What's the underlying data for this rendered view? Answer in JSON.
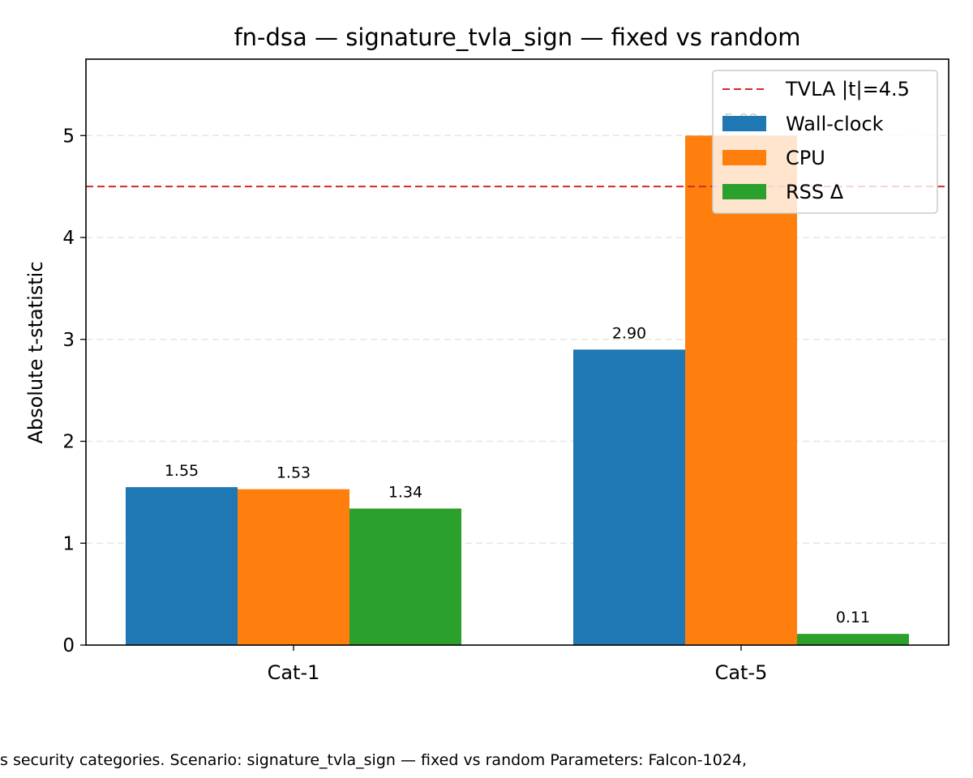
{
  "chart_data": {
    "type": "bar",
    "title": "fn-dsa — signature_tvla_sign — fixed vs random",
    "xlabel": "",
    "ylabel": "Absolute t-statistic",
    "categories": [
      "Cat-1",
      "Cat-5"
    ],
    "series": [
      {
        "name": "Wall-clock",
        "color": "#1f77b4",
        "values": [
          1.55,
          2.9
        ],
        "labels": [
          "1.55",
          "2.90"
        ]
      },
      {
        "name": "CPU",
        "color": "#ff7f0e",
        "values": [
          1.53,
          5.0
        ],
        "labels": [
          "1.53",
          "5.00"
        ]
      },
      {
        "name": "RSS Δ",
        "color": "#2ca02c",
        "values": [
          1.34,
          0.11
        ],
        "labels": [
          "1.34",
          "0.11"
        ]
      }
    ],
    "threshold": {
      "label": "TVLA |t|=4.5",
      "value": 4.5,
      "color": "#d62728",
      "style": "dashed"
    },
    "ylim": [
      0,
      5.75
    ],
    "yticks": [
      0,
      1,
      2,
      3,
      4,
      5
    ],
    "grid": "y-dashed",
    "legend_position": "top-right"
  },
  "caption": "s security categories. Scenario: signature_tvla_sign — fixed vs random Parameters: Falcon-1024, "
}
